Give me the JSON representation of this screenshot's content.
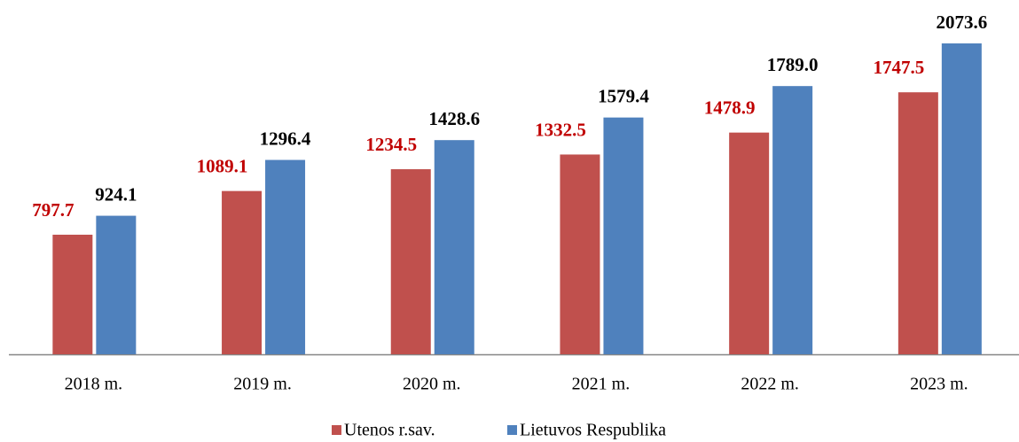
{
  "chart_data": {
    "type": "bar",
    "categories": [
      "2018 m.",
      "2019 m.",
      "2020 m.",
      "2021 m.",
      "2022 m.",
      "2023 m."
    ],
    "series": [
      {
        "name": "Utenos r.sav.",
        "color": "#c0504d",
        "label_color": "#c00000",
        "values": [
          797.7,
          1089.1,
          1234.5,
          1332.5,
          1478.9,
          1747.5
        ],
        "value_labels": [
          "797.7",
          "1089.1",
          "1234.5",
          "1332.5",
          "1478.9",
          "1747.5"
        ]
      },
      {
        "name": "Lietuvos Respublika",
        "color": "#4f81bd",
        "label_color": "#000000",
        "values": [
          924.1,
          1296.4,
          1428.6,
          1579.4,
          1789.0,
          2073.6
        ],
        "value_labels": [
          "924.1",
          "1296.4",
          "1428.6",
          "1579.4",
          "1789.0",
          "2073.6"
        ]
      }
    ],
    "legend": "bottom"
  }
}
